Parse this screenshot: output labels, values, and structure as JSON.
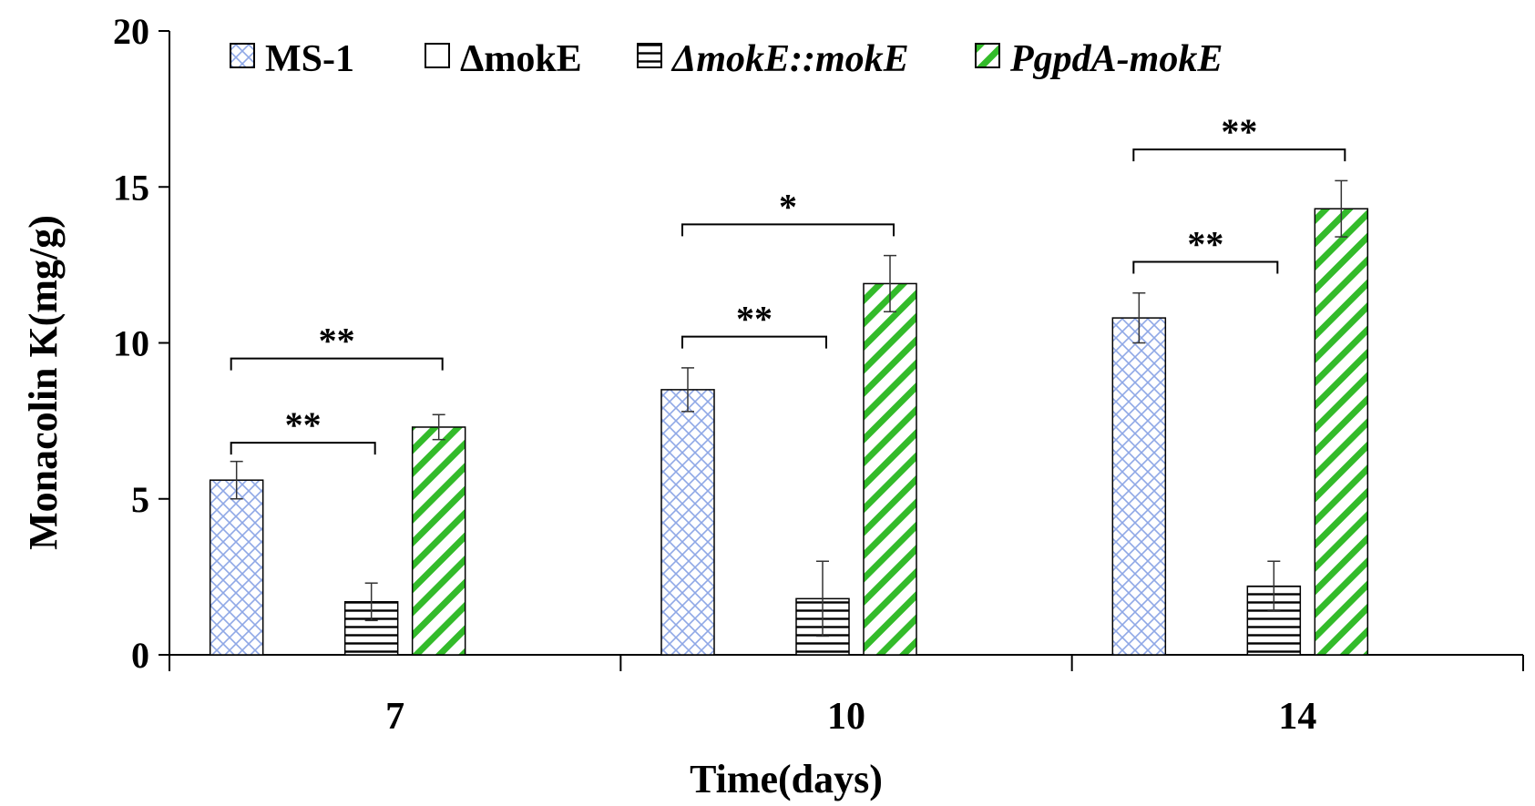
{
  "chart_data": {
    "type": "bar",
    "title": "",
    "xlabel": "Time(days)",
    "ylabel": "Monacolin K(mg/g)",
    "categories": [
      "7",
      "10",
      "14"
    ],
    "ylim": [
      0,
      20
    ],
    "yticks": [
      "0",
      "5",
      "10",
      "15",
      "20"
    ],
    "grid": false,
    "legend_position": "top",
    "series": [
      {
        "name": "MS-1",
        "values": [
          5.6,
          8.5,
          10.8
        ],
        "errors": [
          0.6,
          0.7,
          0.8
        ],
        "color": "#9db4e8",
        "pattern": "crosshatch",
        "italic": false
      },
      {
        "name": "ΔmokE",
        "values": [
          0,
          0,
          0
        ],
        "errors": [
          0,
          0,
          0
        ],
        "color": "#000000",
        "pattern": "empty",
        "italic": false
      },
      {
        "name": "ΔmokE::mokE",
        "values": [
          1.7,
          1.8,
          2.2
        ],
        "errors": [
          0.6,
          1.2,
          0.8
        ],
        "color": "#000000",
        "pattern": "horizontal",
        "italic": true
      },
      {
        "name": "PgpdA-mokE",
        "values": [
          7.3,
          11.9,
          14.3
        ],
        "errors": [
          0.4,
          0.9,
          0.9
        ],
        "color": "#33bb2a",
        "pattern": "diagonal",
        "italic": true
      }
    ],
    "annotations": [
      {
        "group": 0,
        "from_series": 0,
        "to_series": 2,
        "label": "**",
        "level": 6.8
      },
      {
        "group": 0,
        "from_series": 0,
        "to_series": 3,
        "label": "**",
        "level": 9.5
      },
      {
        "group": 1,
        "from_series": 0,
        "to_series": 2,
        "label": "**",
        "level": 10.2
      },
      {
        "group": 1,
        "from_series": 0,
        "to_series": 3,
        "label": "*",
        "level": 13.8
      },
      {
        "group": 2,
        "from_series": 0,
        "to_series": 2,
        "label": "**",
        "level": 12.6
      },
      {
        "group": 2,
        "from_series": 0,
        "to_series": 3,
        "label": "**",
        "level": 16.2
      }
    ]
  }
}
